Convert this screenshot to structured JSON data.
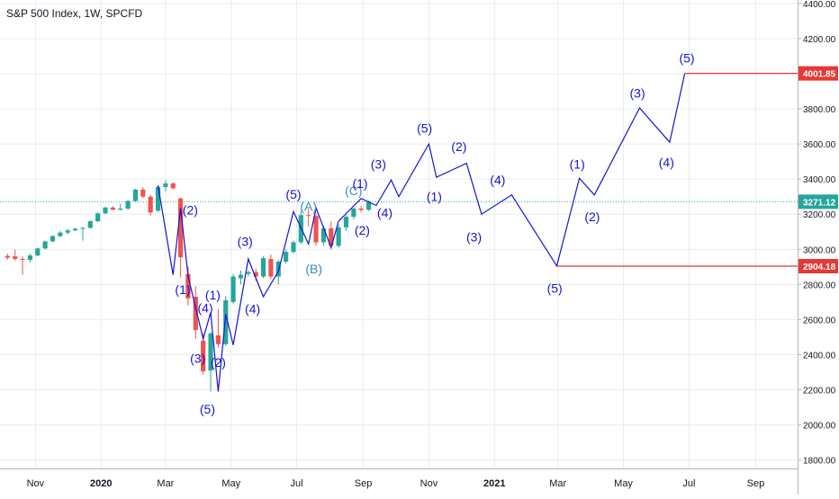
{
  "title": "S&P 500 Index, 1W, SPCFD",
  "colors": {
    "up": "#26a69a",
    "down": "#ef5350",
    "wave": "#1414d2",
    "wave_alt": "#3a8bc2",
    "level": "#e53935",
    "price_line": "#26a69a",
    "grid": "#e9ecef",
    "axis_text": "#131722"
  },
  "chart_data": {
    "type": "candlestick",
    "title": "S&P 500 Index, 1W, SPCFD",
    "x_axis": {
      "ticks": [
        {
          "label": "Nov",
          "date": "2019-11-01"
        },
        {
          "label": "2020",
          "date": "2020-01-01",
          "bold": true
        },
        {
          "label": "Mar",
          "date": "2020-03-01"
        },
        {
          "label": "May",
          "date": "2020-05-01"
        },
        {
          "label": "Jul",
          "date": "2020-07-01"
        },
        {
          "label": "Sep",
          "date": "2020-09-01"
        },
        {
          "label": "Nov",
          "date": "2020-11-01"
        },
        {
          "label": "2021",
          "date": "2021-01-01",
          "bold": true
        },
        {
          "label": "Mar",
          "date": "2021-03-01"
        },
        {
          "label": "May",
          "date": "2021-05-01"
        },
        {
          "label": "Jul",
          "date": "2021-07-01"
        },
        {
          "label": "Sep",
          "date": "2021-09-01"
        }
      ],
      "range": [
        "2019-09-29",
        "2021-10-10"
      ]
    },
    "y_axis": {
      "position": "right",
      "ticks": [
        1800,
        2000,
        2200,
        2400,
        2600,
        2800,
        3000,
        3200,
        3400,
        3600,
        3800,
        4000,
        4200,
        4400
      ],
      "tick_labels": [
        "1800.00",
        "2000.00",
        "2200.00",
        "2400.00",
        "2600.00",
        "2800.00",
        "3000.00",
        "3200.00",
        "3400.00",
        "3600.00",
        "3800.00",
        "4000.00",
        "4200.00",
        "4400.00"
      ],
      "range": [
        1752,
        4420
      ]
    },
    "candles": [
      {
        "date": "2019-10-06",
        "o": 2962,
        "h": 2975,
        "l": 2940,
        "c": 2952
      },
      {
        "date": "2019-10-13",
        "o": 2960,
        "h": 2998,
        "l": 2935,
        "c": 2945
      },
      {
        "date": "2019-10-20",
        "o": 2945,
        "h": 2960,
        "l": 2855,
        "c": 2940
      },
      {
        "date": "2019-10-27",
        "o": 2940,
        "h": 2975,
        "l": 2925,
        "c": 2965
      },
      {
        "date": "2019-11-03",
        "o": 2965,
        "h": 3010,
        "l": 2960,
        "c": 3005
      },
      {
        "date": "2019-11-10",
        "o": 3005,
        "h": 3050,
        "l": 3000,
        "c": 3045
      },
      {
        "date": "2019-11-17",
        "o": 3045,
        "h": 3080,
        "l": 3040,
        "c": 3075
      },
      {
        "date": "2019-11-24",
        "o": 3075,
        "h": 3105,
        "l": 3070,
        "c": 3095
      },
      {
        "date": "2019-12-01",
        "o": 3095,
        "h": 3115,
        "l": 3085,
        "c": 3108
      },
      {
        "date": "2019-12-08",
        "o": 3108,
        "h": 3122,
        "l": 3102,
        "c": 3117
      },
      {
        "date": "2019-12-15",
        "o": 3117,
        "h": 3128,
        "l": 3050,
        "c": 3122
      },
      {
        "date": "2019-12-22",
        "o": 3122,
        "h": 3165,
        "l": 3118,
        "c": 3160
      },
      {
        "date": "2019-12-29",
        "o": 3160,
        "h": 3210,
        "l": 3155,
        "c": 3205
      },
      {
        "date": "2020-01-05",
        "o": 3205,
        "h": 3242,
        "l": 3200,
        "c": 3238
      },
      {
        "date": "2020-01-12",
        "o": 3238,
        "h": 3246,
        "l": 3222,
        "c": 3226
      },
      {
        "date": "2020-01-19",
        "o": 3226,
        "h": 3260,
        "l": 3220,
        "c": 3232
      },
      {
        "date": "2020-01-26",
        "o": 3232,
        "h": 3280,
        "l": 3225,
        "c": 3275
      },
      {
        "date": "2020-02-02",
        "o": 3275,
        "h": 3345,
        "l": 3270,
        "c": 3340
      },
      {
        "date": "2020-02-09",
        "o": 3340,
        "h": 3353,
        "l": 3290,
        "c": 3300
      },
      {
        "date": "2020-02-16",
        "o": 3300,
        "h": 3310,
        "l": 3193,
        "c": 3210
      },
      {
        "date": "2020-02-23",
        "o": 3220,
        "h": 3362,
        "l": 3212,
        "c": 3355
      },
      {
        "date": "2020-03-01",
        "o": 3355,
        "h": 3393,
        "l": 3330,
        "c": 3375
      },
      {
        "date": "2020-03-08",
        "o": 3375,
        "h": 3382,
        "l": 3340,
        "c": 3348
      },
      {
        "date": "2020-03-15",
        "o": 3290,
        "h": 3295,
        "l": 2840,
        "c": 2955
      },
      {
        "date": "2020-03-22",
        "o": 2860,
        "h": 2900,
        "l": 2680,
        "c": 2720
      },
      {
        "date": "2020-03-29",
        "o": 2730,
        "h": 2790,
        "l": 2490,
        "c": 2540
      },
      {
        "date": "2020-04-05",
        "o": 2480,
        "h": 2520,
        "l": 2285,
        "c": 2305
      },
      {
        "date": "2020-04-12",
        "o": 2310,
        "h": 2530,
        "l": 2190,
        "c": 2520
      },
      {
        "date": "2020-04-19",
        "o": 2510,
        "h": 2660,
        "l": 2440,
        "c": 2460
      },
      {
        "date": "2020-04-26",
        "o": 2460,
        "h": 2735,
        "l": 2450,
        "c": 2710
      },
      {
        "date": "2020-05-03",
        "o": 2700,
        "h": 2860,
        "l": 2690,
        "c": 2845
      },
      {
        "date": "2020-05-10",
        "o": 2835,
        "h": 2880,
        "l": 2800,
        "c": 2855
      },
      {
        "date": "2020-05-17",
        "o": 2860,
        "h": 2880,
        "l": 2845,
        "c": 2870
      },
      {
        "date": "2020-05-24",
        "o": 2870,
        "h": 2890,
        "l": 2820,
        "c": 2845
      },
      {
        "date": "2020-05-31",
        "o": 2845,
        "h": 2960,
        "l": 2835,
        "c": 2950
      },
      {
        "date": "2020-06-07",
        "o": 2945,
        "h": 2970,
        "l": 2830,
        "c": 2845
      },
      {
        "date": "2020-06-14",
        "o": 2845,
        "h": 2940,
        "l": 2800,
        "c": 2930
      },
      {
        "date": "2020-06-21",
        "o": 2930,
        "h": 3000,
        "l": 2920,
        "c": 2985
      },
      {
        "date": "2020-06-28",
        "o": 2985,
        "h": 3050,
        "l": 2975,
        "c": 3040
      },
      {
        "date": "2020-07-05",
        "o": 3040,
        "h": 3220,
        "l": 3030,
        "c": 3195
      },
      {
        "date": "2020-07-12",
        "o": 3195,
        "h": 3230,
        "l": 3130,
        "c": 3190
      },
      {
        "date": "2020-07-19",
        "o": 3190,
        "h": 3200,
        "l": 3020,
        "c": 3040
      },
      {
        "date": "2020-07-26",
        "o": 3040,
        "h": 3135,
        "l": 3020,
        "c": 3120
      },
      {
        "date": "2020-08-02",
        "o": 3120,
        "h": 3160,
        "l": 3000,
        "c": 3020
      },
      {
        "date": "2020-08-09",
        "o": 3020,
        "h": 3140,
        "l": 3010,
        "c": 3125
      },
      {
        "date": "2020-08-16",
        "o": 3125,
        "h": 3195,
        "l": 3105,
        "c": 3185
      },
      {
        "date": "2020-08-23",
        "o": 3185,
        "h": 3238,
        "l": 3170,
        "c": 3232
      },
      {
        "date": "2020-08-30",
        "o": 3232,
        "h": 3248,
        "l": 3210,
        "c": 3224
      },
      {
        "date": "2020-09-06",
        "o": 3225,
        "h": 3278,
        "l": 3218,
        "c": 3271
      }
    ],
    "wave_path": [
      {
        "date": "2020-02-23",
        "v": 3365
      },
      {
        "date": "2020-03-08",
        "v": 2855
      },
      {
        "date": "2020-03-15",
        "v": 3235
      },
      {
        "date": "2020-03-22",
        "v": 2845
      },
      {
        "date": "2020-04-05",
        "v": 2490
      },
      {
        "date": "2020-04-12",
        "v": 2640
      },
      {
        "date": "2020-04-19",
        "v": 2190
      },
      {
        "date": "2020-04-26",
        "v": 2630
      },
      {
        "date": "2020-05-03",
        "v": 2455
      },
      {
        "date": "2020-05-17",
        "v": 2945
      },
      {
        "date": "2020-05-31",
        "v": 2730
      },
      {
        "date": "2020-06-14",
        "v": 2875
      },
      {
        "date": "2020-06-28",
        "v": 3215
      },
      {
        "date": "2020-07-12",
        "v": 3030
      },
      {
        "date": "2020-07-19",
        "v": 3235
      },
      {
        "date": "2020-08-02",
        "v": 3010
      },
      {
        "date": "2020-08-09",
        "v": 3160
      },
      {
        "date": "2020-08-30",
        "v": 3290
      },
      {
        "date": "2020-09-13",
        "v": 3250
      },
      {
        "date": "2020-09-27",
        "v": 3395
      },
      {
        "date": "2020-10-04",
        "v": 3300
      },
      {
        "date": "2020-11-01",
        "v": 3600
      },
      {
        "date": "2020-11-08",
        "v": 3410
      },
      {
        "date": "2020-12-06",
        "v": 3490
      },
      {
        "date": "2020-12-20",
        "v": 3200
      },
      {
        "date": "2021-01-17",
        "v": 3310
      },
      {
        "date": "2021-02-28",
        "v": 2905
      },
      {
        "date": "2021-03-21",
        "v": 3405
      },
      {
        "date": "2021-04-04",
        "v": 3310
      },
      {
        "date": "2021-05-16",
        "v": 3805
      },
      {
        "date": "2021-06-13",
        "v": 3610
      },
      {
        "date": "2021-06-27",
        "v": 4000
      }
    ],
    "wave_labels": [
      {
        "text": "(2)",
        "date": "2020-03-24",
        "v": 3225,
        "tone": "primary"
      },
      {
        "text": "(1)",
        "date": "2020-03-17",
        "v": 2770,
        "tone": "primary"
      },
      {
        "text": "(4)",
        "date": "2020-04-07",
        "v": 2665,
        "tone": "primary"
      },
      {
        "text": "(3)",
        "date": "2020-03-31",
        "v": 2380,
        "tone": "primary"
      },
      {
        "text": "(5)",
        "date": "2020-04-09",
        "v": 2090,
        "tone": "primary"
      },
      {
        "text": "(1)",
        "date": "2020-04-14",
        "v": 2740,
        "tone": "primary"
      },
      {
        "text": "(2)",
        "date": "2020-04-19",
        "v": 2355,
        "tone": "primary"
      },
      {
        "text": "(3)",
        "date": "2020-05-14",
        "v": 3045,
        "tone": "primary"
      },
      {
        "text": "(4)",
        "date": "2020-05-21",
        "v": 2660,
        "tone": "primary"
      },
      {
        "text": "(5)",
        "date": "2020-06-28",
        "v": 3315,
        "tone": "primary"
      },
      {
        "text": "(A)",
        "date": "2020-07-12",
        "v": 3245,
        "tone": "secondary"
      },
      {
        "text": "(B)",
        "date": "2020-07-17",
        "v": 2890,
        "tone": "secondary"
      },
      {
        "text": "(C)",
        "date": "2020-08-23",
        "v": 3335,
        "tone": "secondary"
      },
      {
        "text": "(1)",
        "date": "2020-08-29",
        "v": 3375,
        "tone": "primary"
      },
      {
        "text": "(2)",
        "date": "2020-08-31",
        "v": 3110,
        "tone": "primary"
      },
      {
        "text": "(3)",
        "date": "2020-09-15",
        "v": 3485,
        "tone": "primary"
      },
      {
        "text": "(4)",
        "date": "2020-09-21",
        "v": 3210,
        "tone": "primary"
      },
      {
        "text": "(5)",
        "date": "2020-10-28",
        "v": 3690,
        "tone": "primary"
      },
      {
        "text": "(1)",
        "date": "2020-11-06",
        "v": 3300,
        "tone": "primary"
      },
      {
        "text": "(2)",
        "date": "2020-11-29",
        "v": 3585,
        "tone": "primary"
      },
      {
        "text": "(3)",
        "date": "2020-12-13",
        "v": 3070,
        "tone": "primary"
      },
      {
        "text": "(4)",
        "date": "2021-01-04",
        "v": 3395,
        "tone": "primary"
      },
      {
        "text": "(5)",
        "date": "2021-02-26",
        "v": 2780,
        "tone": "primary"
      },
      {
        "text": "(1)",
        "date": "2021-03-19",
        "v": 3485,
        "tone": "primary"
      },
      {
        "text": "(2)",
        "date": "2021-04-02",
        "v": 3185,
        "tone": "primary"
      },
      {
        "text": "(3)",
        "date": "2021-05-14",
        "v": 3890,
        "tone": "primary"
      },
      {
        "text": "(4)",
        "date": "2021-06-10",
        "v": 3495,
        "tone": "primary"
      },
      {
        "text": "(5)",
        "date": "2021-06-29",
        "v": 4090,
        "tone": "primary"
      }
    ],
    "horizontal_levels": [
      {
        "value": 4001.85,
        "label": "4001.85",
        "from_date": "2021-06-27",
        "color": "#e53935"
      },
      {
        "value": 2904.18,
        "label": "2904.18",
        "from_date": "2021-02-28",
        "color": "#e53935"
      }
    ],
    "last_price": {
      "value": 3271.12,
      "label": "3271.12"
    },
    "grid": true
  }
}
